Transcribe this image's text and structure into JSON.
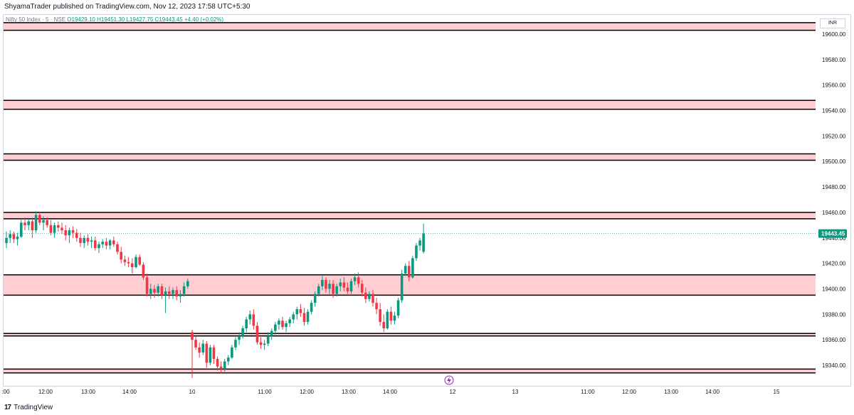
{
  "header": {
    "publish_text": "ShyamaTrader published on TradingView.com, Nov 12, 2023 17:58 UTC+5:30"
  },
  "legend": {
    "symbol": "Nifty 50 Index · 5 · NSE",
    "open": "O19429.10",
    "high": "H19451.30",
    "low": "L19427.75",
    "close": "C19443.45",
    "change": "+4.40 (+0.02%)"
  },
  "currency": "INR",
  "footer": {
    "logo": "17",
    "brand": "TradingView"
  },
  "colors": {
    "up": "#089981",
    "down": "#f23645",
    "zone_fill": "#ffcdd2",
    "line": "#000000",
    "last_price_bg": "#089981"
  },
  "chart_data": {
    "type": "candlestick",
    "y_range": [
      19330,
      19620
    ],
    "y_ticks": [
      "19340.00",
      "19360.00",
      "19380.00",
      "19400.00",
      "19420.00",
      "19440.00",
      "19460.00",
      "19480.00",
      "19500.00",
      "19520.00",
      "19540.00",
      "19560.00",
      "19580.00",
      "19600.00"
    ],
    "x_ticks": [
      ":00",
      "12:00",
      "13:00",
      "14:00",
      "10",
      "11:00",
      "12:00",
      "13:00",
      "14:00",
      "12",
      "13",
      "11:00",
      "12:00",
      "13:00",
      "14:00",
      "15"
    ],
    "last_price": "19443.45",
    "zones": [
      {
        "low": 19603,
        "high": 19609
      },
      {
        "low": 19541,
        "high": 19548
      },
      {
        "low": 19501,
        "high": 19506
      },
      {
        "low": 19455,
        "high": 19460
      },
      {
        "low": 19395,
        "high": 19411
      },
      {
        "low": 19363,
        "high": 19365
      },
      {
        "low": 19334,
        "high": 19337
      }
    ],
    "candles": [
      [
        19436,
        19445,
        19432,
        19440
      ],
      [
        19440,
        19446,
        19436,
        19443
      ],
      [
        19443,
        19445,
        19436,
        19439
      ],
      [
        19439,
        19444,
        19434,
        19441
      ],
      [
        19441,
        19455,
        19440,
        19452
      ],
      [
        19452,
        19456,
        19446,
        19450
      ],
      [
        19450,
        19455,
        19446,
        19453
      ],
      [
        19453,
        19456,
        19440,
        19446
      ],
      [
        19446,
        19461,
        19444,
        19458
      ],
      [
        19458,
        19460,
        19450,
        19452
      ],
      [
        19452,
        19457,
        19446,
        19454
      ],
      [
        19454,
        19456,
        19448,
        19450
      ],
      [
        19450,
        19454,
        19442,
        19444
      ],
      [
        19444,
        19452,
        19440,
        19450
      ],
      [
        19450,
        19453,
        19445,
        19448
      ],
      [
        19448,
        19452,
        19443,
        19446
      ],
      [
        19446,
        19450,
        19438,
        19442
      ],
      [
        19442,
        19448,
        19436,
        19446
      ],
      [
        19446,
        19449,
        19440,
        19444
      ],
      [
        19444,
        19447,
        19437,
        19440
      ],
      [
        19440,
        19444,
        19433,
        19436
      ],
      [
        19436,
        19442,
        19432,
        19440
      ],
      [
        19440,
        19443,
        19434,
        19437
      ],
      [
        19437,
        19441,
        19432,
        19438
      ],
      [
        19438,
        19441,
        19430,
        19432
      ],
      [
        19432,
        19437,
        19428,
        19435
      ],
      [
        19435,
        19439,
        19432,
        19437
      ],
      [
        19437,
        19440,
        19431,
        19434
      ],
      [
        19434,
        19439,
        19431,
        19438
      ],
      [
        19438,
        19441,
        19433,
        19435
      ],
      [
        19435,
        19437,
        19427,
        19429
      ],
      [
        19429,
        19433,
        19420,
        19423
      ],
      [
        19423,
        19426,
        19418,
        19421
      ],
      [
        19421,
        19425,
        19417,
        19420
      ],
      [
        19420,
        19424,
        19412,
        19417
      ],
      [
        19417,
        19427,
        19416,
        19425
      ],
      [
        19425,
        19427,
        19418,
        19419
      ],
      [
        19419,
        19421,
        19407,
        19409
      ],
      [
        19409,
        19412,
        19394,
        19396
      ],
      [
        19396,
        19404,
        19392,
        19400
      ],
      [
        19400,
        19403,
        19393,
        19397
      ],
      [
        19397,
        19404,
        19394,
        19402
      ],
      [
        19402,
        19404,
        19392,
        19395
      ],
      [
        19395,
        19401,
        19381,
        19398
      ],
      [
        19398,
        19402,
        19392,
        19396
      ],
      [
        19396,
        19401,
        19392,
        19399
      ],
      [
        19399,
        19402,
        19391,
        19394
      ],
      [
        19394,
        19399,
        19389,
        19396
      ],
      [
        19396,
        19405,
        19394,
        19402
      ],
      [
        19402,
        19408,
        19400,
        19406
      ],
      [
        19366,
        19368,
        19330,
        19360
      ],
      [
        19360,
        19363,
        19352,
        19354
      ],
      [
        19354,
        19358,
        19346,
        19350
      ],
      [
        19350,
        19360,
        19348,
        19357
      ],
      [
        19357,
        19359,
        19338,
        19342
      ],
      [
        19342,
        19356,
        19340,
        19354
      ],
      [
        19354,
        19356,
        19341,
        19345
      ],
      [
        19345,
        19347,
        19336,
        19339
      ],
      [
        19339,
        19343,
        19334,
        19337
      ],
      [
        19337,
        19345,
        19335,
        19343
      ],
      [
        19343,
        19348,
        19340,
        19346
      ],
      [
        19346,
        19356,
        19345,
        19354
      ],
      [
        19354,
        19362,
        19352,
        19360
      ],
      [
        19360,
        19366,
        19356,
        19363
      ],
      [
        19363,
        19371,
        19361,
        19369
      ],
      [
        19369,
        19378,
        19366,
        19376
      ],
      [
        19376,
        19383,
        19372,
        19380
      ],
      [
        19380,
        19384,
        19368,
        19371
      ],
      [
        19371,
        19374,
        19356,
        19358
      ],
      [
        19358,
        19362,
        19353,
        19356
      ],
      [
        19356,
        19360,
        19352,
        19357
      ],
      [
        19357,
        19366,
        19355,
        19363
      ],
      [
        19363,
        19369,
        19360,
        19367
      ],
      [
        19367,
        19374,
        19364,
        19372
      ],
      [
        19372,
        19377,
        19368,
        19375
      ],
      [
        19375,
        19378,
        19368,
        19370
      ],
      [
        19370,
        19375,
        19366,
        19373
      ],
      [
        19373,
        19378,
        19370,
        19376
      ],
      [
        19376,
        19382,
        19373,
        19380
      ],
      [
        19380,
        19386,
        19376,
        19384
      ],
      [
        19384,
        19388,
        19378,
        19381
      ],
      [
        19381,
        19385,
        19371,
        19374
      ],
      [
        19374,
        19384,
        19372,
        19382
      ],
      [
        19382,
        19391,
        19380,
        19389
      ],
      [
        19389,
        19398,
        19386,
        19396
      ],
      [
        19396,
        19404,
        19394,
        19402
      ],
      [
        19402,
        19410,
        19399,
        19407
      ],
      [
        19407,
        19409,
        19397,
        19400
      ],
      [
        19400,
        19407,
        19396,
        19404
      ],
      [
        19404,
        19407,
        19393,
        19396
      ],
      [
        19396,
        19404,
        19394,
        19402
      ],
      [
        19402,
        19408,
        19398,
        19405
      ],
      [
        19405,
        19409,
        19398,
        19401
      ],
      [
        19401,
        19405,
        19396,
        19398
      ],
      [
        19398,
        19408,
        19396,
        19406
      ],
      [
        19406,
        19412,
        19403,
        19409
      ],
      [
        19409,
        19413,
        19401,
        19404
      ],
      [
        19404,
        19407,
        19394,
        19397
      ],
      [
        19397,
        19401,
        19389,
        19392
      ],
      [
        19392,
        19398,
        19390,
        19396
      ],
      [
        19396,
        19399,
        19386,
        19389
      ],
      [
        19389,
        19393,
        19380,
        19384
      ],
      [
        19384,
        19389,
        19371,
        19374
      ],
      [
        19374,
        19380,
        19366,
        19369
      ],
      [
        19369,
        19384,
        19368,
        19382
      ],
      [
        19382,
        19386,
        19372,
        19375
      ],
      [
        19375,
        19382,
        19372,
        19379
      ],
      [
        19379,
        19393,
        19377,
        19391
      ],
      [
        19391,
        19415,
        19389,
        19412
      ],
      [
        19412,
        19420,
        19410,
        19418
      ],
      [
        19418,
        19422,
        19406,
        19409
      ],
      [
        19409,
        19426,
        19408,
        19424
      ],
      [
        19424,
        19436,
        19422,
        19434
      ],
      [
        19434,
        19440,
        19430,
        19438
      ],
      [
        19429.1,
        19451.3,
        19427.75,
        19443.45
      ]
    ]
  }
}
